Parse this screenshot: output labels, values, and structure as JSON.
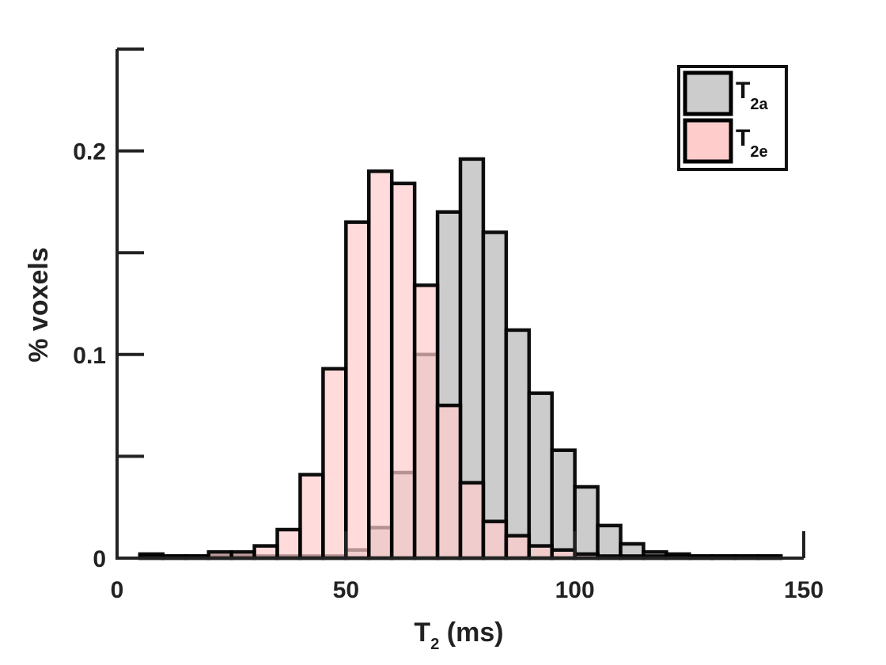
{
  "chart_data": {
    "type": "bar",
    "subtype": "overlapping-histogram",
    "xlabel_main": "T",
    "xlabel_sub": "2",
    "xlabel_rest": " (ms)",
    "ylabel": "% voxels",
    "xlim": [
      0,
      150
    ],
    "ylim": [
      0,
      0.25
    ],
    "x_ticks": [
      0,
      50,
      100,
      150
    ],
    "x_tick_labels": [
      "0",
      "50",
      "100",
      "150"
    ],
    "y_ticks": [
      0,
      0.05,
      0.1,
      0.15,
      0.2,
      0.25
    ],
    "y_tick_labels": [
      "0",
      "",
      "0.1",
      "",
      "0.2",
      ""
    ],
    "bin_width": 5,
    "legend_position": "top-right",
    "series": [
      {
        "legend_main": "T",
        "legend_sub": "2a",
        "color": "#cccccc",
        "bin_left_edges": [
          5,
          10,
          15,
          20,
          25,
          30,
          35,
          40,
          45,
          50,
          55,
          60,
          65,
          70,
          75,
          80,
          85,
          90,
          95,
          100,
          105,
          110,
          115,
          120,
          125,
          130,
          135,
          140
        ],
        "values": [
          0.002,
          0.001,
          0.001,
          0.001,
          0.001,
          0.001,
          0.001,
          0.001,
          0.001,
          0.004,
          0.015,
          0.042,
          0.1,
          0.17,
          0.196,
          0.16,
          0.112,
          0.081,
          0.053,
          0.035,
          0.016,
          0.007,
          0.003,
          0.002,
          0.001,
          0.001,
          0.001,
          0.001
        ]
      },
      {
        "legend_main": "T",
        "legend_sub": "2e",
        "color": "#ffcccc",
        "bin_left_edges": [
          5,
          10,
          15,
          20,
          25,
          30,
          35,
          40,
          45,
          50,
          55,
          60,
          65,
          70,
          75,
          80,
          85,
          90,
          95,
          100,
          105,
          110,
          115,
          120,
          125,
          130,
          135,
          140
        ],
        "values": [
          0.001,
          0.001,
          0.001,
          0.003,
          0.003,
          0.006,
          0.014,
          0.041,
          0.093,
          0.165,
          0.19,
          0.184,
          0.134,
          0.075,
          0.037,
          0.018,
          0.011,
          0.006,
          0.004,
          0.002,
          0.001,
          0.001,
          0.001,
          0.001,
          0.001,
          0.001,
          0.001,
          0.001
        ]
      }
    ]
  }
}
